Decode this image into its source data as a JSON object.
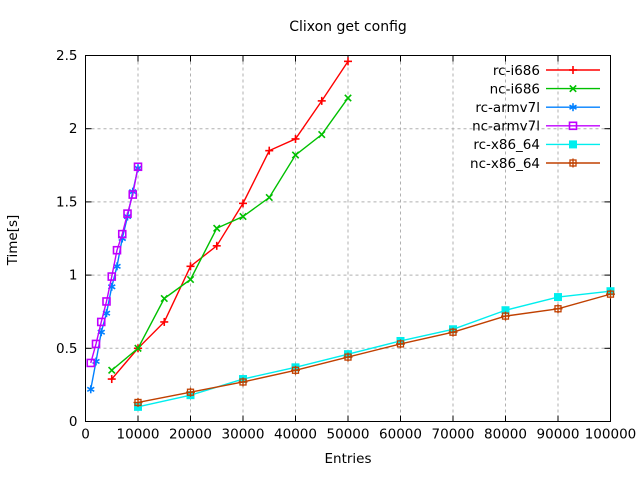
{
  "title": "Clixon get config",
  "axes": {
    "x_label": "Entries",
    "y_label": "Time[s]"
  },
  "colors": {
    "background": "#ffffff",
    "border": "#000000",
    "grid": "#b0b0b0",
    "text": "#000000"
  },
  "legend": {
    "position": "top-right-inside",
    "entries": [
      "rc-i686",
      "nc-i686",
      "rc-armv7l",
      "nc-armv7l",
      "rc-x86_64",
      "nc-x86_64"
    ]
  },
  "chart_data": {
    "type": "line",
    "title": "Clixon get config",
    "xlabel": "Entries",
    "ylabel": "Time[s]",
    "xlim": [
      0,
      100000
    ],
    "ylim": [
      0,
      2.5
    ],
    "xticks": [
      0,
      10000,
      20000,
      30000,
      40000,
      50000,
      60000,
      70000,
      80000,
      90000,
      100000
    ],
    "yticks": [
      0,
      0.5,
      1,
      1.5,
      2,
      2.5
    ],
    "grid": true,
    "legend_position": "top-right",
    "series": [
      {
        "name": "rc-i686",
        "color": "#ff0000",
        "marker": "plus",
        "x": [
          5000,
          10000,
          15000,
          20000,
          25000,
          30000,
          35000,
          40000,
          45000,
          50000
        ],
        "y": [
          0.29,
          0.5,
          0.68,
          1.06,
          1.2,
          1.49,
          1.85,
          1.93,
          2.19,
          2.46
        ]
      },
      {
        "name": "nc-i686",
        "color": "#00c000",
        "marker": "cross",
        "x": [
          5000,
          10000,
          15000,
          20000,
          25000,
          30000,
          35000,
          40000,
          45000,
          50000
        ],
        "y": [
          0.35,
          0.5,
          0.84,
          0.97,
          1.32,
          1.4,
          1.53,
          1.82,
          1.96,
          2.21
        ]
      },
      {
        "name": "rc-armv7l",
        "color": "#0080ff",
        "marker": "asterisk",
        "x": [
          1000,
          2000,
          3000,
          4000,
          5000,
          6000,
          7000,
          8000,
          9000,
          10000
        ],
        "y": [
          0.22,
          0.41,
          0.61,
          0.74,
          0.92,
          1.06,
          1.25,
          1.4,
          1.57,
          1.73
        ]
      },
      {
        "name": "nc-armv7l",
        "color": "#c000ff",
        "marker": "square-open",
        "x": [
          1000,
          2000,
          3000,
          4000,
          5000,
          6000,
          7000,
          8000,
          9000,
          10000
        ],
        "y": [
          0.4,
          0.53,
          0.68,
          0.82,
          0.99,
          1.17,
          1.28,
          1.42,
          1.55,
          1.74
        ]
      },
      {
        "name": "rc-x86_64",
        "color": "#00eeee",
        "marker": "square-filled",
        "x": [
          10000,
          20000,
          30000,
          40000,
          50000,
          60000,
          70000,
          80000,
          90000,
          100000
        ],
        "y": [
          0.1,
          0.18,
          0.29,
          0.37,
          0.46,
          0.55,
          0.63,
          0.76,
          0.85,
          0.89
        ]
      },
      {
        "name": "nc-x86_64",
        "color": "#c04000",
        "marker": "boxed-plus",
        "x": [
          10000,
          20000,
          30000,
          40000,
          50000,
          60000,
          70000,
          80000,
          90000,
          100000
        ],
        "y": [
          0.13,
          0.2,
          0.27,
          0.35,
          0.44,
          0.53,
          0.61,
          0.72,
          0.77,
          0.87
        ]
      }
    ]
  }
}
